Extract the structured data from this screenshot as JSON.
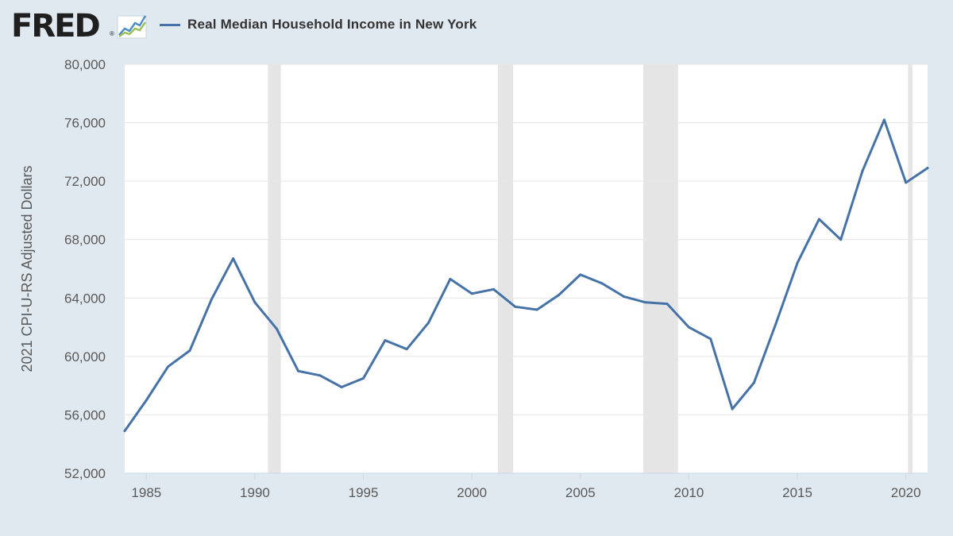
{
  "header": {
    "logo_text": "FRED",
    "logo_mark": "®",
    "logo_icon": "line-chart-icon"
  },
  "colors": {
    "background": "#e1e9f0",
    "plot_background": "#ffffff",
    "series": "#4572a7",
    "recession": "#e5e5e5",
    "grid": "#e6e6e6"
  },
  "chart_data": {
    "type": "line",
    "title": "",
    "xlabel": "",
    "ylabel": "2021 CPI-U-RS Adjusted Dollars",
    "xlim": [
      1984,
      2021
    ],
    "ylim": [
      52000,
      80000
    ],
    "grid": true,
    "legend_position": "top-left",
    "y_ticks": [
      {
        "value": 52000,
        "label": "52,000"
      },
      {
        "value": 56000,
        "label": "56,000"
      },
      {
        "value": 60000,
        "label": "60,000"
      },
      {
        "value": 64000,
        "label": "64,000"
      },
      {
        "value": 68000,
        "label": "68,000"
      },
      {
        "value": 72000,
        "label": "72,000"
      },
      {
        "value": 76000,
        "label": "76,000"
      },
      {
        "value": 80000,
        "label": "80,000"
      }
    ],
    "x_ticks": [
      {
        "value": 1985,
        "label": "1985"
      },
      {
        "value": 1990,
        "label": "1990"
      },
      {
        "value": 1995,
        "label": "1995"
      },
      {
        "value": 2000,
        "label": "2000"
      },
      {
        "value": 2005,
        "label": "2005"
      },
      {
        "value": 2010,
        "label": "2010"
      },
      {
        "value": 2015,
        "label": "2015"
      },
      {
        "value": 2020,
        "label": "2020"
      }
    ],
    "recessions": [
      {
        "start": 1990.6,
        "end": 1991.2
      },
      {
        "start": 2001.2,
        "end": 2001.9
      },
      {
        "start": 2007.9,
        "end": 2009.5
      },
      {
        "start": 2020.1,
        "end": 2020.3
      }
    ],
    "series": [
      {
        "name": "Real Median Household Income in New York",
        "x": [
          1984,
          1985,
          1986,
          1987,
          1988,
          1989,
          1990,
          1991,
          1992,
          1993,
          1994,
          1995,
          1996,
          1997,
          1998,
          1999,
          2000,
          2001,
          2002,
          2003,
          2004,
          2005,
          2006,
          2007,
          2008,
          2009,
          2010,
          2011,
          2012,
          2013,
          2014,
          2015,
          2016,
          2017,
          2018,
          2019,
          2020,
          2021
        ],
        "values": [
          54900,
          57000,
          59300,
          60400,
          63900,
          66700,
          63700,
          61900,
          59000,
          58700,
          57900,
          58500,
          61100,
          60500,
          62300,
          65300,
          64300,
          64600,
          63400,
          63200,
          64200,
          65600,
          65000,
          64100,
          63700,
          63600,
          62000,
          61200,
          56400,
          58200,
          62200,
          66400,
          69400,
          68000,
          72700,
          76200,
          71900,
          72900
        ]
      }
    ]
  }
}
